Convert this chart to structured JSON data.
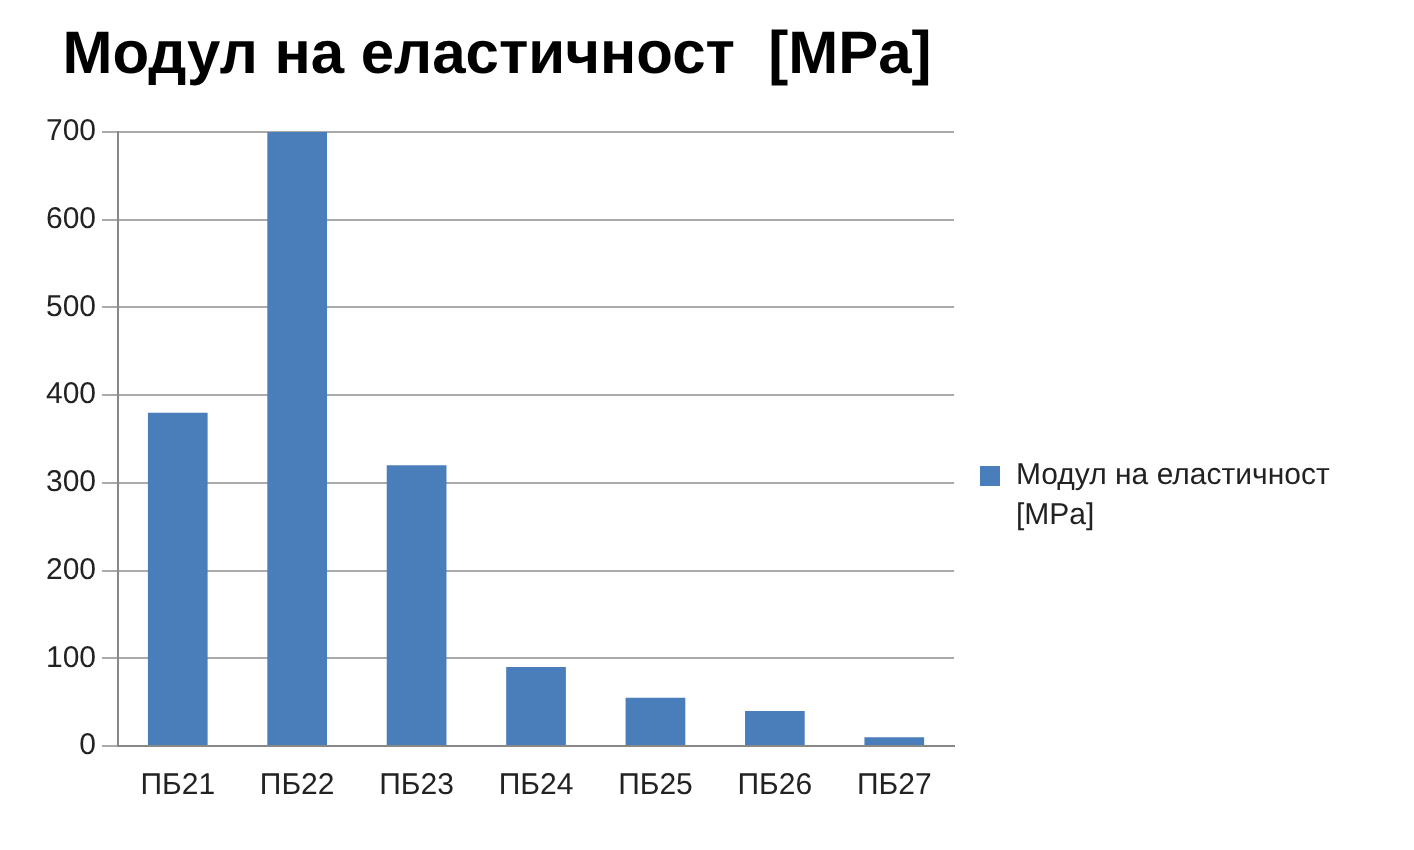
{
  "chart_data": {
    "type": "bar",
    "title": "Модул на еластичност  [MPa]",
    "categories": [
      "ПБ21",
      "ПБ22",
      "ПБ23",
      "ПБ24",
      "ПБ25",
      "ПБ26",
      "ПБ27"
    ],
    "series": [
      {
        "name": "Модул на еластичност [MPa]",
        "color": "#4a7ebb",
        "values": [
          380,
          700,
          320,
          90,
          55,
          40,
          10
        ]
      }
    ],
    "ylim": [
      0,
      700
    ],
    "yticks": [
      0,
      100,
      200,
      300,
      400,
      500,
      600,
      700
    ],
    "grid": "y",
    "legend": "right"
  }
}
